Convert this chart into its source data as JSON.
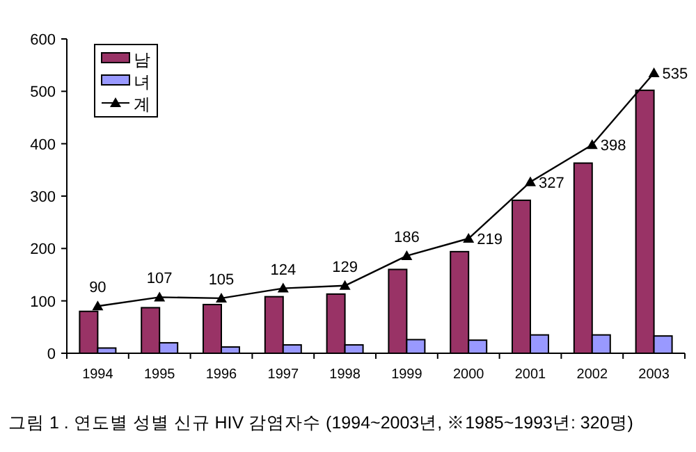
{
  "chart_data": {
    "type": "bar",
    "categories": [
      "1994",
      "1995",
      "1996",
      "1997",
      "1998",
      "1999",
      "2000",
      "2001",
      "2002",
      "2003"
    ],
    "series": [
      {
        "name": "남",
        "color": "#993366",
        "values": [
          80,
          87,
          93,
          108,
          113,
          160,
          194,
          292,
          363,
          502
        ]
      },
      {
        "name": "녀",
        "color": "#9999ff",
        "values": [
          10,
          20,
          12,
          16,
          16,
          26,
          25,
          35,
          35,
          33
        ]
      },
      {
        "name": "계",
        "type": "line",
        "color": "#000000",
        "marker": "triangle",
        "values": [
          90,
          107,
          105,
          124,
          129,
          186,
          219,
          327,
          398,
          535
        ],
        "value_labels": [
          "90",
          "107",
          "105",
          "124",
          "129",
          "186",
          "219",
          "327",
          "398",
          "535"
        ]
      }
    ],
    "ylim": [
      0,
      600
    ],
    "yticks": [
      0,
      100,
      200,
      300,
      400,
      500,
      600
    ],
    "grid": false,
    "legend": "top left",
    "annotations": [
      "그림 1 . 연도별 성별 신규 HIV 감염자수 (1994~2003년, ※1985~1993년: 320명)"
    ]
  }
}
